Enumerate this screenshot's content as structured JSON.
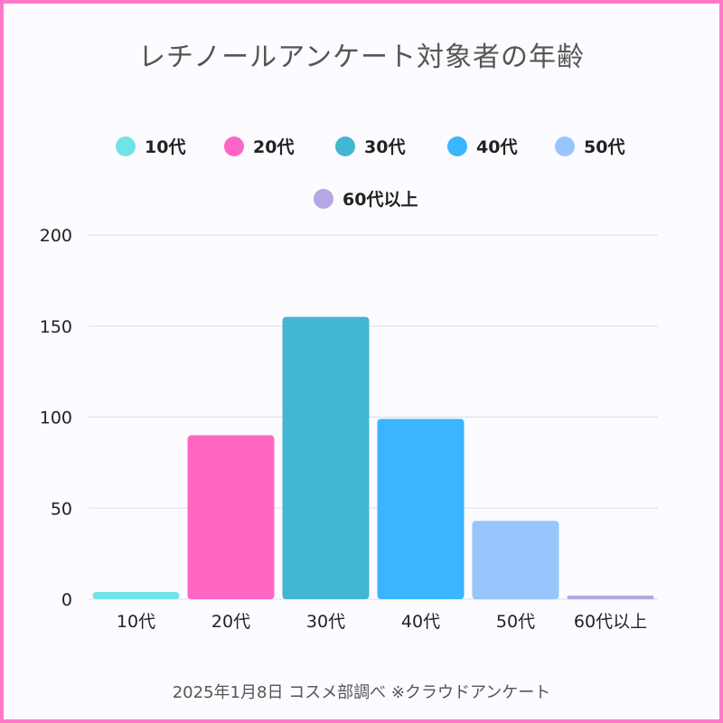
{
  "chart_data": {
    "type": "bar",
    "title": "レチノールアンケート対象者の年齢",
    "categories": [
      "10代",
      "20代",
      "30代",
      "40代",
      "50代",
      "60代以上"
    ],
    "series": [
      {
        "name": "10代",
        "color": "#6fe3e6",
        "values": [
          4,
          null,
          null,
          null,
          null,
          null
        ]
      },
      {
        "name": "20代",
        "color": "#ff66c4",
        "values": [
          null,
          90,
          null,
          null,
          null,
          null
        ]
      },
      {
        "name": "30代",
        "color": "#43b6d1",
        "values": [
          null,
          null,
          155,
          null,
          null,
          null
        ]
      },
      {
        "name": "40代",
        "color": "#3bb5ff",
        "values": [
          null,
          null,
          null,
          99,
          null,
          null
        ]
      },
      {
        "name": "50代",
        "color": "#98c5fc",
        "values": [
          null,
          null,
          null,
          null,
          43,
          null
        ]
      },
      {
        "name": "60代以上",
        "color": "#b4a7e3",
        "values": [
          null,
          null,
          null,
          null,
          null,
          2
        ]
      }
    ],
    "values": [
      4,
      90,
      155,
      99,
      43,
      2
    ],
    "ylim": [
      0,
      200
    ],
    "yticks": [
      "0",
      "50",
      "100",
      "150",
      "200"
    ],
    "grid": true,
    "legend_position": "top",
    "xlabel": "",
    "ylabel": ""
  },
  "footer": "2025年1月8日 コスメ部調べ ※クラウドアンケート",
  "colors": {
    "border": "#ff78c8",
    "background": "#fcfbff",
    "grid": "#dcdce6"
  }
}
